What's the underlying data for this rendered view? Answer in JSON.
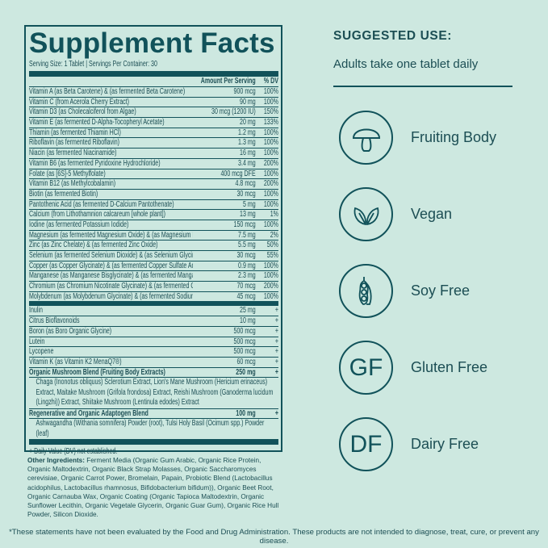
{
  "facts": {
    "title": "Supplement Facts",
    "serving": "Serving Size: 1 Tablet  |  Servings Per Container: 30",
    "col_amount": "Amount Per Serving",
    "col_dv": "% DV",
    "vitamins": [
      [
        "Vitamin A (as Beta Carotene) & (as fermented Beta Carotene)",
        "900 mcg",
        "100%"
      ],
      [
        "Vitamin C (from Acerola Cherry Extract)",
        "90 mg",
        "100%"
      ],
      [
        "Vitamin D3 (as Cholecalciferol from Algae)",
        "30 mcg (1200 IU)",
        "150%"
      ],
      [
        "Vitamin E (as fermented D-Alpha-Tocopheryl Acetate)",
        "20 mg",
        "133%"
      ],
      [
        "Thiamin (as fermented Thiamin HCl)",
        "1.2 mg",
        "100%"
      ],
      [
        "Riboflavin (as fermented Riboflavin)",
        "1.3 mg",
        "100%"
      ],
      [
        "Niacin (as fermented Niacinamide)",
        "16 mg",
        "100%"
      ],
      [
        "Vitamin B6 (as fermented Pyridoxine Hydrochloride)",
        "3.4 mg",
        "200%"
      ],
      [
        "Folate (as [6S]-5 Methylfolate)",
        "400 mcg DFE",
        "100%"
      ],
      [
        "Vitamin B12 (as Methylcobalamin)",
        "4.8 mcg",
        "200%"
      ],
      [
        "Biotin (as fermented Biotin)",
        "30 mcg",
        "100%"
      ],
      [
        "Pantothenic Acid (as fermented D-Calcium Pantothenate)",
        "5 mg",
        "100%"
      ],
      [
        "Calcium (from Lithothamnion calcareum [whole plant])",
        "13 mg",
        "1%"
      ],
      [
        "Iodine (as fermented Potassium Iodide)",
        "150 mcg",
        "100%"
      ],
      [
        "Magnesium (as fermented Magnesium Oxide) & (as Magnesium Bisglycinate)",
        "7.5 mg",
        "2%"
      ],
      [
        "Zinc (as Zinc Chelate) & (as fermented Zinc Oxide)",
        "5.5 mg",
        "50%"
      ],
      [
        "Selenium (as fermented Selenium Dioxide) & (as Selenium Glycinate)",
        "30 mcg",
        "55%"
      ],
      [
        "Copper (as Copper Glycinate) & (as fermented Copper Sulfate Anhydrous)",
        "0.9 mg",
        "100%"
      ],
      [
        "Manganese (as Manganese Bisglycinate) & (as fermented Manganese Chloride)",
        "2.3 mg",
        "100%"
      ],
      [
        "Chromium (as Chromium Nicotinate Glycinate) & (as fermented Chromium Chloride)",
        "70 mcg",
        "200%"
      ],
      [
        "Molybdenum (as Molybdenum Glycinate) & (as fermented Sodium Molybdate)",
        "45 mcg",
        "100%"
      ]
    ],
    "others": [
      [
        "Inulin",
        "25 mg",
        "+"
      ],
      [
        "Citrus Bioflavonoids",
        "10 mg",
        "+"
      ],
      [
        "Boron (as Boro Organic Glycine)",
        "500 mcg",
        "+"
      ],
      [
        "Lutein",
        "500 mcg",
        "+"
      ],
      [
        "Lycopene",
        "500 mcg",
        "+"
      ],
      [
        "Vitamin K (as Vitamin K2 MenaQ7®)",
        "60 mcg",
        "+"
      ]
    ],
    "mushroom": {
      "name": "Organic Mushroom Blend (Fruiting Body Extracts)",
      "amount": "250 mg",
      "dv": "+",
      "detail": "Chaga (Inonotus obliquus) Sclerotium Extract, Lion's Mane Mushroom (Hericium erinaceus) Extract, Maitake Mushroom (Grifola frondosa) Extract, Reishi Mushroom (Ganoderma lucidum (Lingzhi)) Extract, Shiitake Mushroom (Lentinula edodes) Extract"
    },
    "adaptogen": {
      "name": "Regenerative and Organic Adaptogen Blend",
      "amount": "100 mg",
      "dv": "+",
      "detail": "Ashwagandha (Withania somnifera) Powder (root), Tulsi Holy Basil (Ocimum spp.) Powder (leaf)"
    },
    "footnote": "+ Daily Value (DV) not established."
  },
  "other_ingredients": {
    "label": "Other Ingredients:",
    "text": " Ferment Media (Organic Gum Arabic, Organic Rice Protein, Organic Maltodextrin, Organic Black Strap Molasses, Organic Saccharomyces cerevisiae, Organic Carrot Power, Bromelain, Papain, Probiotic Blend (Lactobacillus acidophilus, Lactobacillus rhamnosus, Bifidobacterium bifidum)), Organic Beet Root, Organic Carnauba Wax, Organic Coating (Organic Tapioca Maltodextrin, Organic Sunflower Lecithin, Organic Vegetale Glycerin, Organic Guar Gum), Organic Rice Hull Powder, Silicon Dioxide."
  },
  "suggested": {
    "heading": "SUGGESTED USE:",
    "text": "Adults take one tablet daily"
  },
  "features": [
    {
      "label": "Fruiting Body",
      "icon": "mushroom-icon"
    },
    {
      "label": "Vegan",
      "icon": "leaves-icon"
    },
    {
      "label": "Soy Free",
      "icon": "soybean-pod-icon",
      "glyph": ""
    },
    {
      "label": "Gluten Free",
      "icon": "gf-icon",
      "glyph": "GF"
    },
    {
      "label": "Dairy Free",
      "icon": "df-icon",
      "glyph": "DF"
    }
  ],
  "disclaimer": "*These statements have not been evaluated by the Food and Drug Administration. These products are not intended to diagnose, treat, cure, or prevent any disease.",
  "colors": {
    "background": "#cde8e0",
    "accent": "#11525a"
  }
}
